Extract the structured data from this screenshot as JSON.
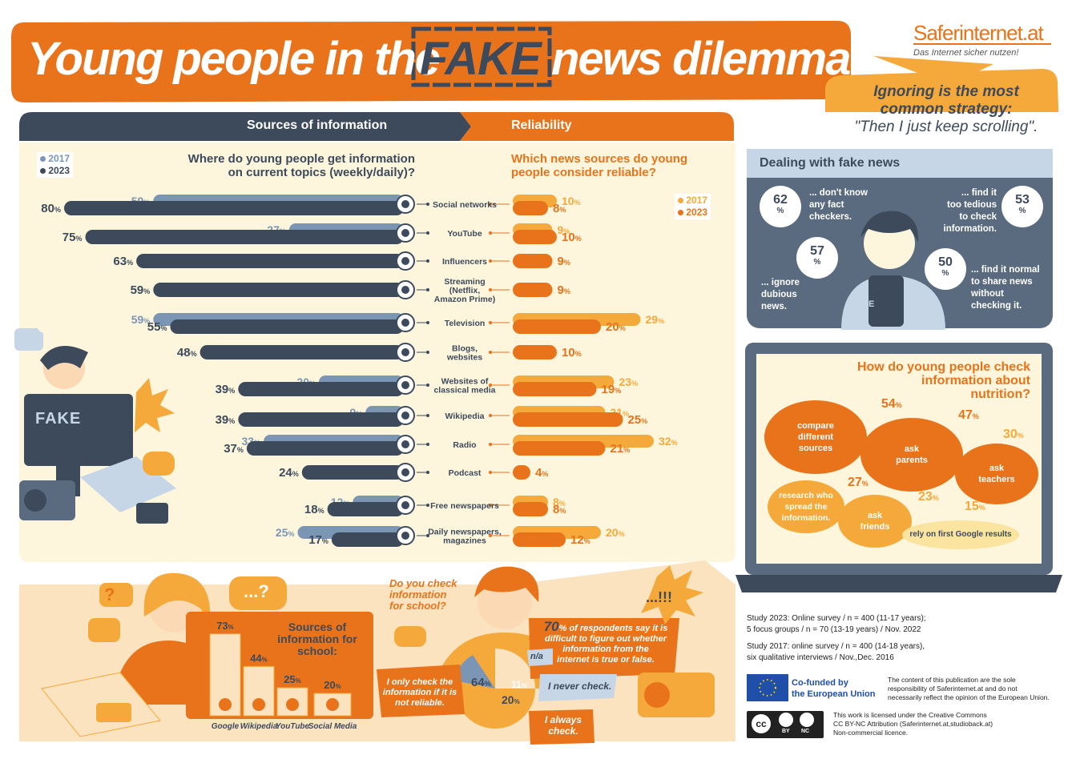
{
  "header": {
    "title_before": "Young people in the",
    "title_fake": "FAKE",
    "title_after": "news dilemma",
    "brand": "Saferinternet.at",
    "tagline": "Das Internet sicher nutzen!",
    "callout_line1": "Ignoring is the most",
    "callout_line2": "common strategy:",
    "callout_line3": "\"Then I just keep scrolling\"."
  },
  "sections": {
    "sources": "Sources of information",
    "reliability": "Reliability",
    "q_sources_1": "Where do young people get information",
    "q_sources_2": "on current topics (weekly/daily)?",
    "q_rel_1": "Which news sources do young",
    "q_rel_2": "people consider reliable?",
    "pct": "%"
  },
  "colors": {
    "navy": "#3d4a5c",
    "light_blue": "#7b96b5",
    "orange": "#e8731a",
    "light_orange": "#f5a93a",
    "cream": "#fdf6dc"
  },
  "chart_data": [
    {
      "type": "bar",
      "title": "Where do young people get information on current topics (weekly/daily)?",
      "categories": [
        "Social networks",
        "YouTube",
        "Influencers",
        "Streaming (Netflix, Amazon Prime)",
        "Television",
        "Blogs, websites",
        "Websites of classical media",
        "Wikipedia",
        "Radio",
        "Podcast",
        "Free newspapers",
        "Daily newspapers, magazines"
      ],
      "series": [
        {
          "name": "2017",
          "color": "#7b96b5",
          "values": [
            59,
            27,
            null,
            null,
            59,
            null,
            20,
            9,
            33,
            null,
            12,
            25
          ]
        },
        {
          "name": "2023",
          "color": "#3d4a5c",
          "values": [
            80,
            75,
            63,
            59,
            55,
            48,
            39,
            39,
            37,
            24,
            18,
            17
          ]
        }
      ],
      "unit": "%"
    },
    {
      "type": "bar",
      "title": "Which news sources do young people consider reliable?",
      "categories": [
        "Social networks",
        "YouTube",
        "Influencers",
        "Streaming (Netflix, Amazon Prime)",
        "Television",
        "Blogs, websites",
        "Websites of classical media",
        "Wikipedia",
        "Radio",
        "Podcast",
        "Free newspapers",
        "Daily newspapers, magazines"
      ],
      "series": [
        {
          "name": "2017",
          "color": "#f5a93a",
          "values": [
            10,
            9,
            null,
            null,
            29,
            null,
            23,
            21,
            32,
            null,
            8,
            20
          ]
        },
        {
          "name": "2023",
          "color": "#e8731a",
          "values": [
            8,
            10,
            9,
            9,
            20,
            10,
            19,
            25,
            21,
            4,
            8,
            12
          ]
        }
      ],
      "unit": "%"
    },
    {
      "type": "bar",
      "title": "Sources of information for school:",
      "categories": [
        "Google",
        "Wikipedia",
        "YouTube",
        "Social Media"
      ],
      "values": [
        73,
        44,
        25,
        20
      ],
      "unit": "%"
    }
  ],
  "legend": {
    "y2017": "2017",
    "y2023": "2023"
  },
  "row_labels": [
    [
      "Social networks"
    ],
    [
      "YouTube"
    ],
    [
      "Influencers"
    ],
    [
      "Streaming",
      "(Netflix,",
      "Amazon Prime)"
    ],
    [
      "Television"
    ],
    [
      "Blogs,",
      "websites"
    ],
    [
      "Websites of",
      "classical media"
    ],
    [
      "Wikipedia"
    ],
    [
      "Radio"
    ],
    [
      "Podcast"
    ],
    [
      "Free newspapers"
    ],
    [
      "Daily newspapers,",
      "magazines"
    ]
  ],
  "fake_label": "FAKE",
  "dealing": {
    "title": "Dealing with fake news",
    "items": [
      {
        "value": "62",
        "text": [
          "... don't know",
          "any fact",
          "checkers."
        ]
      },
      {
        "value": "53",
        "text": [
          "... find it",
          "too tedious",
          "to check",
          "information."
        ]
      },
      {
        "value": "57",
        "text": [
          "... ignore",
          "dubious",
          "news."
        ]
      },
      {
        "value": "50",
        "text": [
          "... find it normal",
          "to share news",
          "without",
          "checking it."
        ]
      }
    ]
  },
  "nutrition": {
    "title_1": "How do young people check",
    "title_2": "information about",
    "title_3": "nutrition?",
    "items": [
      {
        "label": [
          "compare",
          "different",
          "sources"
        ],
        "value": "54"
      },
      {
        "label": [
          "ask",
          "parents"
        ],
        "value": "47"
      },
      {
        "label": [
          "ask",
          "teachers"
        ],
        "value": "30"
      },
      {
        "label": [
          "research who",
          "spread the",
          "information."
        ],
        "value": "27"
      },
      {
        "label": [
          "ask",
          "friends"
        ],
        "value": "23"
      },
      {
        "label": [
          "rely on first Google results"
        ],
        "value": "15"
      }
    ]
  },
  "school": {
    "title_1": "Sources of",
    "title_2": "information for",
    "title_3": "school:",
    "question_1": "Do you check",
    "question_2": "information",
    "question_3": "for school?",
    "stat_value": "70",
    "stat_text": [
      "% of respondents say it is",
      "difficult to figure out whether",
      "information from the",
      "internet is true or false."
    ],
    "check_pcts": {
      "only_if": "64",
      "na": "n/a",
      "never": "11",
      "always": "20"
    },
    "only_if": [
      "I only check the",
      "information if it is",
      "not reliable."
    ],
    "never": "I never check.",
    "always": [
      "I always",
      "check."
    ],
    "bubble_dots": "...?",
    "burst": "...!!!"
  },
  "study": {
    "s2023_1": "Study 2023: Online survey / n = 400 (11-17 years);",
    "s2023_2": "5 focus groups / n = 70 (13-19 years) / Nov. 2022",
    "s2017_1": "Study 2017: online survey / n = 400 (14-18 years),",
    "s2017_2": "six qualitative interviews / Nov.,Dec. 2016",
    "eu_1": "Co-funded by",
    "eu_2": "the European Union",
    "eu_note": [
      "The content of this publication are the sole",
      "responsibility of Saferinternet.at and do not",
      "necessarily reflect the opinion of the European Union."
    ],
    "cc_note": [
      "This work is licensed under the Creative Commons",
      "CC BY-NC Attribution (Saferinternet.at,studioback.at)",
      "Non-commercial licence."
    ],
    "cc": "cc",
    "by": "BY",
    "nc": "NC"
  }
}
